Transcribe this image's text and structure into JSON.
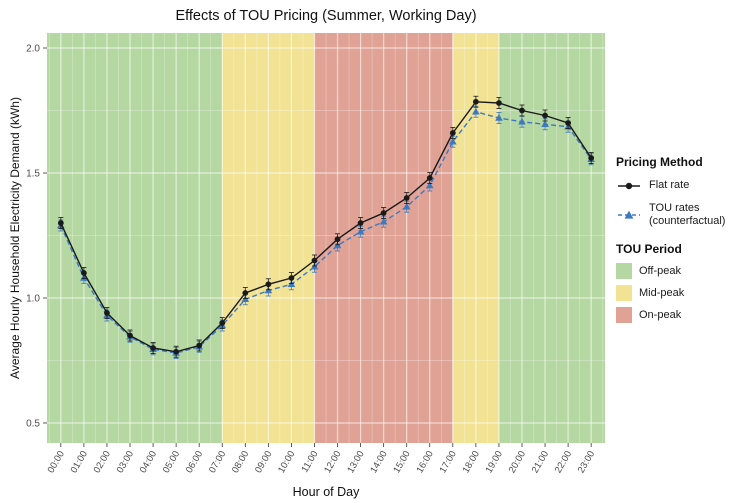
{
  "chart_data": {
    "type": "line",
    "title": "Effects of TOU Pricing (Summer, Working Day)",
    "xlabel": "Hour of Day",
    "ylabel": "Average Hourly Household Electricity Demand (kWh)",
    "x": [
      0,
      1,
      2,
      3,
      4,
      5,
      6,
      7,
      8,
      9,
      10,
      11,
      12,
      13,
      14,
      15,
      16,
      17,
      18,
      19,
      20,
      21,
      22,
      23
    ],
    "x_tick_labels": [
      "00:00",
      "01:00",
      "02:00",
      "03:00",
      "04:00",
      "05:00",
      "06:00",
      "07:00",
      "08:00",
      "09:00",
      "10:00",
      "11:00",
      "12:00",
      "13:00",
      "14:00",
      "15:00",
      "16:00",
      "17:00",
      "18:00",
      "19:00",
      "20:00",
      "21:00",
      "22:00",
      "23:00"
    ],
    "y_ticks": [
      0.5,
      1.0,
      1.5,
      2.0
    ],
    "y_minor_ticks": [
      0.75,
      1.25,
      1.75
    ],
    "ylim": [
      0.42,
      2.06
    ],
    "xlim": [
      -0.6,
      23.6
    ],
    "grid": true,
    "series": [
      {
        "name": "Flat rate",
        "color": "#1a1a1a",
        "marker": "circle",
        "linestyle": "solid",
        "error": 0.022,
        "values": [
          1.3,
          1.1,
          0.94,
          0.85,
          0.8,
          0.785,
          0.81,
          0.9,
          1.02,
          1.055,
          1.08,
          1.15,
          1.235,
          1.3,
          1.34,
          1.4,
          1.48,
          1.66,
          1.785,
          1.78,
          1.75,
          1.73,
          1.7,
          1.56
        ]
      },
      {
        "name": "TOU rates (counterfactual)",
        "color": "#3d79c1",
        "marker": "triangle",
        "linestyle": "dashed",
        "error": 0.022,
        "values": [
          1.29,
          1.08,
          0.93,
          0.845,
          0.795,
          0.78,
          0.805,
          0.89,
          0.995,
          1.03,
          1.055,
          1.125,
          1.21,
          1.265,
          1.305,
          1.365,
          1.45,
          1.625,
          1.745,
          1.72,
          1.705,
          1.695,
          1.685,
          1.555
        ]
      }
    ],
    "bands": [
      {
        "label": "Off-peak",
        "color": "#b5d7a2",
        "from": -0.6,
        "to": 7
      },
      {
        "label": "Mid-peak",
        "color": "#f2e394",
        "from": 7,
        "to": 11
      },
      {
        "label": "On-peak",
        "color": "#e0a295",
        "from": 11,
        "to": 17
      },
      {
        "label": "Mid-peak",
        "color": "#f2e394",
        "from": 17,
        "to": 19
      },
      {
        "label": "Off-peak",
        "color": "#b5d7a2",
        "from": 19,
        "to": 23.6
      }
    ],
    "legend": {
      "pricing_title": "Pricing Method",
      "items": [
        {
          "label": "Flat rate",
          "label2": ""
        },
        {
          "label": "TOU rates",
          "label2": "(counterfactual)"
        }
      ],
      "period_title": "TOU Period",
      "periods": [
        {
          "label": "Off-peak",
          "color": "#b5d7a2"
        },
        {
          "label": "Mid-peak",
          "color": "#f2e394"
        },
        {
          "label": "On-peak",
          "color": "#e0a295"
        }
      ]
    }
  }
}
